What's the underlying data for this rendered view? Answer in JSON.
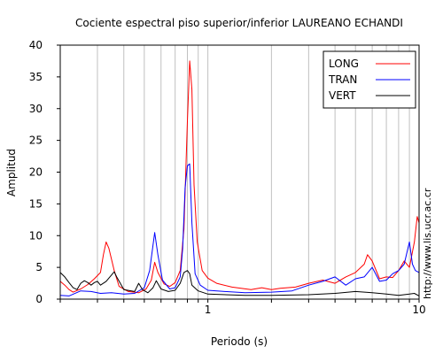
{
  "chart_data": {
    "type": "line",
    "title": "Cociente espectral piso superior/inferior LAUREANO ECHANDI",
    "xlabel": "Periodo (s)",
    "ylabel": "Amplitud",
    "xscale": "log",
    "xlim": [
      0.2,
      10
    ],
    "ylim": [
      0,
      40
    ],
    "x_tick_labels": [
      {
        "value": 1,
        "label": "1"
      },
      {
        "value": 10,
        "label": "10"
      }
    ],
    "y_ticks": [
      0,
      5,
      10,
      15,
      20,
      25,
      30,
      35,
      40
    ],
    "grid": "vertical",
    "legend_position": "top-right",
    "watermark": "http://www.lis.ucr.ac.cr",
    "series": [
      {
        "name": "LONG",
        "color": "#ff0000",
        "points": [
          [
            0.2,
            2.8
          ],
          [
            0.21,
            2.2
          ],
          [
            0.22,
            1.5
          ],
          [
            0.23,
            1.1
          ],
          [
            0.25,
            1.6
          ],
          [
            0.27,
            2.3
          ],
          [
            0.29,
            3.2
          ],
          [
            0.31,
            4.2
          ],
          [
            0.32,
            7.0
          ],
          [
            0.33,
            9.0
          ],
          [
            0.34,
            8.0
          ],
          [
            0.36,
            4.5
          ],
          [
            0.38,
            2.0
          ],
          [
            0.42,
            1.2
          ],
          [
            0.47,
            1.0
          ],
          [
            0.51,
            1.6
          ],
          [
            0.54,
            3.0
          ],
          [
            0.56,
            5.8
          ],
          [
            0.58,
            4.2
          ],
          [
            0.62,
            2.4
          ],
          [
            0.66,
            2.0
          ],
          [
            0.7,
            2.6
          ],
          [
            0.74,
            4.5
          ],
          [
            0.77,
            11.0
          ],
          [
            0.8,
            28.0
          ],
          [
            0.82,
            37.5
          ],
          [
            0.84,
            33.0
          ],
          [
            0.86,
            18.0
          ],
          [
            0.89,
            9.0
          ],
          [
            0.94,
            4.5
          ],
          [
            1.0,
            3.3
          ],
          [
            1.1,
            2.5
          ],
          [
            1.3,
            1.9
          ],
          [
            1.6,
            1.5
          ],
          [
            1.8,
            1.8
          ],
          [
            2.0,
            1.5
          ],
          [
            2.2,
            1.7
          ],
          [
            2.6,
            1.9
          ],
          [
            3.0,
            2.5
          ],
          [
            3.5,
            3.0
          ],
          [
            4.0,
            2.5
          ],
          [
            4.5,
            3.5
          ],
          [
            5.0,
            4.2
          ],
          [
            5.5,
            5.5
          ],
          [
            5.7,
            7.0
          ],
          [
            6.0,
            6.0
          ],
          [
            6.5,
            3.2
          ],
          [
            7.0,
            3.5
          ],
          [
            7.5,
            3.4
          ],
          [
            8.0,
            4.5
          ],
          [
            8.5,
            6.0
          ],
          [
            9.0,
            5.0
          ],
          [
            9.5,
            9.0
          ],
          [
            9.8,
            13.0
          ],
          [
            10.0,
            12.0
          ]
        ]
      },
      {
        "name": "TRAN",
        "color": "#0000ff",
        "points": [
          [
            0.2,
            0.6
          ],
          [
            0.22,
            0.5
          ],
          [
            0.25,
            1.3
          ],
          [
            0.28,
            1.2
          ],
          [
            0.31,
            0.9
          ],
          [
            0.35,
            1.0
          ],
          [
            0.4,
            0.8
          ],
          [
            0.45,
            0.9
          ],
          [
            0.5,
            1.8
          ],
          [
            0.53,
            4.5
          ],
          [
            0.55,
            8.5
          ],
          [
            0.56,
            10.5
          ],
          [
            0.58,
            7.0
          ],
          [
            0.61,
            3.0
          ],
          [
            0.66,
            1.6
          ],
          [
            0.7,
            1.8
          ],
          [
            0.74,
            3.5
          ],
          [
            0.76,
            8.0
          ],
          [
            0.78,
            17.5
          ],
          [
            0.8,
            21.0
          ],
          [
            0.82,
            21.3
          ],
          [
            0.84,
            12.0
          ],
          [
            0.87,
            4.0
          ],
          [
            0.92,
            2.2
          ],
          [
            1.0,
            1.4
          ],
          [
            1.2,
            1.2
          ],
          [
            1.5,
            1.0
          ],
          [
            2.0,
            1.1
          ],
          [
            2.5,
            1.3
          ],
          [
            3.0,
            2.2
          ],
          [
            3.5,
            2.8
          ],
          [
            4.0,
            3.5
          ],
          [
            4.5,
            2.2
          ],
          [
            5.0,
            3.2
          ],
          [
            5.5,
            3.5
          ],
          [
            6.0,
            5.0
          ],
          [
            6.5,
            2.8
          ],
          [
            7.0,
            3.0
          ],
          [
            7.5,
            4.0
          ],
          [
            8.0,
            4.5
          ],
          [
            8.5,
            5.5
          ],
          [
            9.0,
            9.0
          ],
          [
            9.3,
            5.5
          ],
          [
            9.6,
            4.5
          ],
          [
            10.0,
            4.2
          ]
        ]
      },
      {
        "name": "VERT",
        "color": "#000000",
        "points": [
          [
            0.2,
            4.2
          ],
          [
            0.21,
            3.5
          ],
          [
            0.22,
            2.6
          ],
          [
            0.23,
            1.8
          ],
          [
            0.24,
            1.5
          ],
          [
            0.25,
            2.5
          ],
          [
            0.26,
            2.9
          ],
          [
            0.27,
            2.6
          ],
          [
            0.28,
            2.2
          ],
          [
            0.29,
            2.6
          ],
          [
            0.3,
            2.8
          ],
          [
            0.31,
            2.2
          ],
          [
            0.33,
            2.8
          ],
          [
            0.35,
            3.8
          ],
          [
            0.36,
            4.3
          ],
          [
            0.37,
            3.5
          ],
          [
            0.4,
            1.5
          ],
          [
            0.45,
            1.2
          ],
          [
            0.47,
            2.5
          ],
          [
            0.49,
            1.5
          ],
          [
            0.52,
            1.0
          ],
          [
            0.55,
            1.8
          ],
          [
            0.57,
            2.9
          ],
          [
            0.6,
            1.6
          ],
          [
            0.65,
            1.2
          ],
          [
            0.7,
            1.4
          ],
          [
            0.74,
            2.5
          ],
          [
            0.77,
            4.2
          ],
          [
            0.8,
            4.5
          ],
          [
            0.82,
            4.0
          ],
          [
            0.84,
            2.2
          ],
          [
            0.9,
            1.3
          ],
          [
            1.0,
            0.8
          ],
          [
            1.5,
            0.6
          ],
          [
            2.0,
            0.6
          ],
          [
            3.0,
            0.7
          ],
          [
            4.0,
            0.9
          ],
          [
            5.0,
            1.2
          ],
          [
            6.0,
            1.0
          ],
          [
            7.0,
            0.8
          ],
          [
            8.0,
            0.6
          ],
          [
            9.0,
            0.8
          ],
          [
            9.5,
            0.9
          ],
          [
            10.0,
            0.5
          ]
        ]
      }
    ]
  }
}
